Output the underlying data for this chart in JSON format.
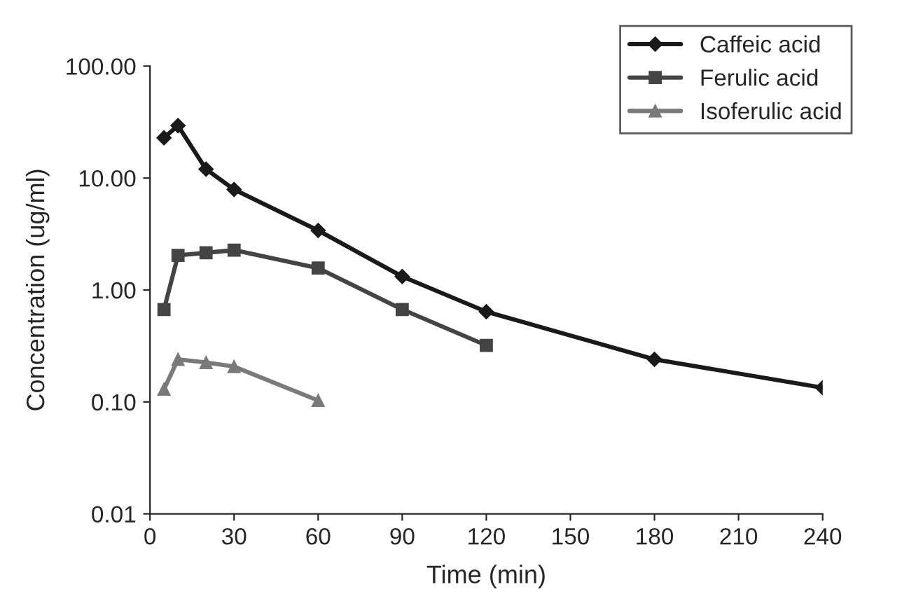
{
  "chart_data": {
    "type": "line",
    "xlabel": "Time (min)",
    "ylabel": "Concentration (ug/ml)",
    "log": "y",
    "xlim": [
      0,
      240
    ],
    "xticks": [
      0,
      30,
      60,
      90,
      120,
      150,
      180,
      210,
      240
    ],
    "ylim": [
      0.01,
      100
    ],
    "yticks": [
      {
        "value": 0.01,
        "label": "0.01"
      },
      {
        "value": 0.1,
        "label": "0.10"
      },
      {
        "value": 1,
        "label": "1.00"
      },
      {
        "value": 10,
        "label": "10.00"
      },
      {
        "value": 100,
        "label": "100.00"
      }
    ],
    "grid": false,
    "legend": "top right",
    "line_style": "solid",
    "series": [
      {
        "name": "Caffeic acid",
        "color": "#1a1a1a",
        "marker": "diamond",
        "x": [
          5,
          10,
          20,
          30,
          60,
          90,
          120,
          180,
          240
        ],
        "values": [
          22.9,
          29.4,
          12.0,
          7.9,
          3.4,
          1.32,
          0.64,
          0.24,
          0.134
        ]
      },
      {
        "name": "Ferulic acid",
        "color": "#444444",
        "marker": "square",
        "x": [
          5,
          10,
          20,
          30,
          60,
          90,
          120
        ],
        "values": [
          0.67,
          2.04,
          2.15,
          2.27,
          1.57,
          0.67,
          0.32
        ]
      },
      {
        "name": "Isoferulic acid",
        "color": "#7a7a7a",
        "marker": "triangle",
        "x": [
          5,
          10,
          20,
          30,
          60
        ],
        "values": [
          0.13,
          0.24,
          0.225,
          0.207,
          0.103
        ]
      }
    ]
  }
}
